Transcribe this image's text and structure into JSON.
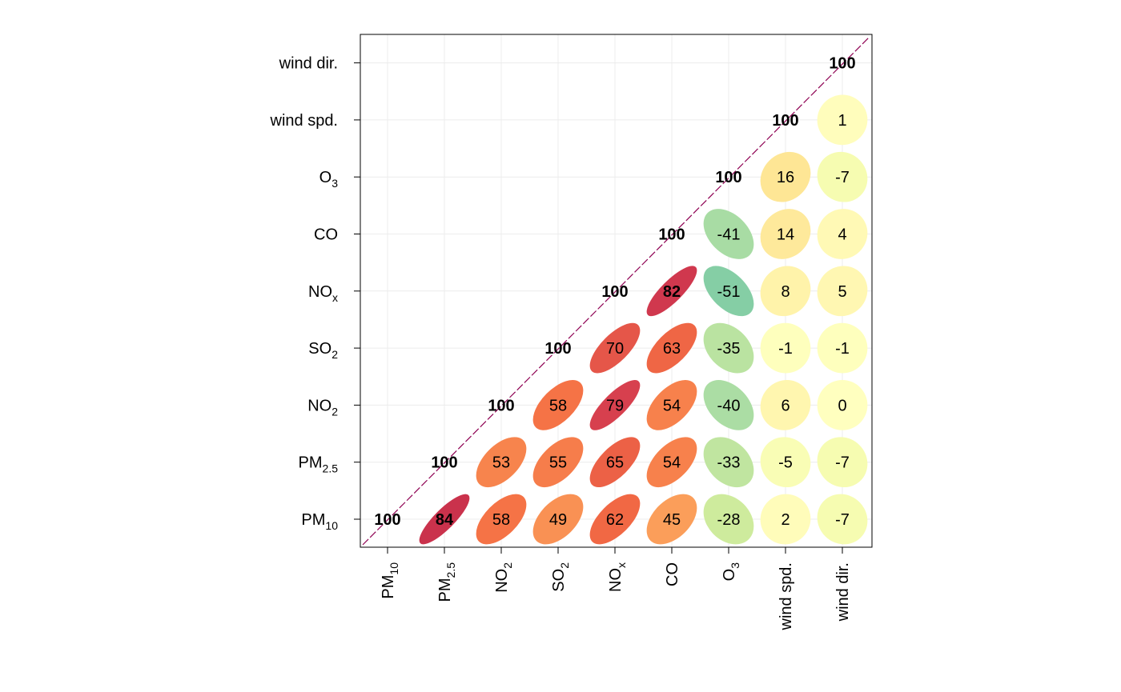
{
  "chart_data": {
    "type": "heatmap",
    "title": "",
    "variables": [
      {
        "base": "PM",
        "sub": "10"
      },
      {
        "base": "PM",
        "sub": "2.5"
      },
      {
        "base": "NO",
        "sub": "2"
      },
      {
        "base": "SO",
        "sub": "2"
      },
      {
        "base": "NO",
        "sub": "x"
      },
      {
        "base": "CO",
        "sub": ""
      },
      {
        "base": "O",
        "sub": "3"
      },
      {
        "base": "wind spd.",
        "sub": ""
      },
      {
        "base": "wind dir.",
        "sub": ""
      }
    ],
    "matrix": [
      [
        100,
        84,
        58,
        49,
        62,
        45,
        -28,
        2,
        -7
      ],
      [
        84,
        100,
        53,
        55,
        65,
        54,
        -33,
        -5,
        -7
      ],
      [
        58,
        53,
        100,
        58,
        79,
        54,
        -40,
        6,
        0
      ],
      [
        49,
        55,
        58,
        100,
        70,
        63,
        -35,
        -1,
        -1
      ],
      [
        62,
        65,
        79,
        70,
        100,
        82,
        -51,
        8,
        5
      ],
      [
        45,
        54,
        54,
        63,
        82,
        100,
        -41,
        14,
        4
      ],
      [
        -28,
        -33,
        -40,
        -35,
        -51,
        -41,
        100,
        16,
        -7
      ],
      [
        2,
        -5,
        6,
        -1,
        8,
        14,
        16,
        100,
        1
      ],
      [
        -7,
        -7,
        0,
        -1,
        5,
        4,
        -7,
        1,
        100
      ]
    ],
    "display": "upper-triangle ellipses, values x100",
    "bold_threshold": 80,
    "colors": {
      "diagonal_line": "#8e0152",
      "grid": "#ececec",
      "scale": [
        "#5e4fa2",
        "#3288bd",
        "#66c2a5",
        "#abdda4",
        "#e6f598",
        "#ffffbf",
        "#fee08b",
        "#fdae61",
        "#f46d43",
        "#d53e4f",
        "#9e0142"
      ]
    }
  }
}
